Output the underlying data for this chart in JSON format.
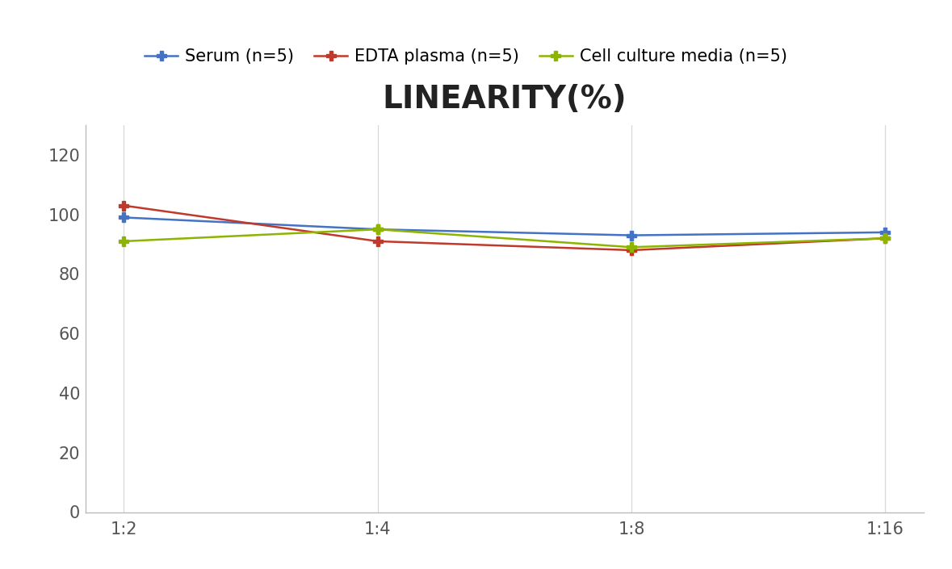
{
  "title": "LINEARITY(%)",
  "x_labels": [
    "1:2",
    "1:4",
    "1:8",
    "1:16"
  ],
  "series": [
    {
      "label": "Serum (n=5)",
      "values": [
        99,
        95,
        93,
        94
      ],
      "color": "#4472C4",
      "marker": "P",
      "marker_size": 9,
      "linewidth": 1.8
    },
    {
      "label": "EDTA plasma (n=5)",
      "values": [
        103,
        91,
        88,
        92
      ],
      "color": "#C0392B",
      "marker": "P",
      "marker_size": 9,
      "linewidth": 1.8
    },
    {
      "label": "Cell culture media (n=5)",
      "values": [
        91,
        95,
        89,
        92
      ],
      "color": "#8DB400",
      "marker": "P",
      "marker_size": 9,
      "linewidth": 1.8
    }
  ],
  "ylim": [
    0,
    130
  ],
  "yticks": [
    0,
    20,
    40,
    60,
    80,
    100,
    120
  ],
  "title_fontsize": 28,
  "legend_fontsize": 15,
  "tick_fontsize": 15,
  "background_color": "#ffffff",
  "grid_color": "#d8d8d8",
  "spine_color": "#bbbbbb"
}
